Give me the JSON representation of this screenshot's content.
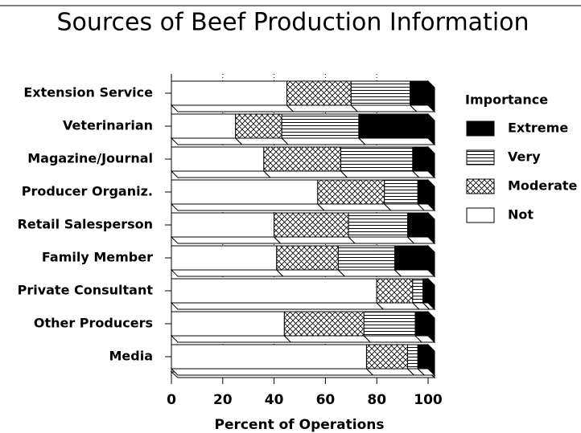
{
  "chart_data": {
    "type": "stacked_barh",
    "title": "Sources of Beef Production Information",
    "xlabel": "Percent of Operations",
    "legend_title": "Importance",
    "legend": "right",
    "categories": [
      "Extension Service",
      "Veterinarian",
      "Magazine/Journal",
      "Producer Organiz.",
      "Retail Salesperson",
      "Family Member",
      "Private Consultant",
      "Other Producers",
      "Media"
    ],
    "series": [
      {
        "name": "Extreme",
        "color": "#000000",
        "pattern": "solid",
        "values": [
          7,
          27,
          6,
          4,
          8,
          13,
          2,
          5,
          4
        ]
      },
      {
        "name": "Very",
        "color": "#000000",
        "pattern": "hlines",
        "values": [
          23,
          30,
          28,
          13,
          23,
          22,
          4,
          20,
          4
        ]
      },
      {
        "name": "Moderate",
        "color": "#000000",
        "pattern": "crosshatch",
        "values": [
          25,
          18,
          30,
          26,
          29,
          24,
          14,
          31,
          16
        ]
      },
      {
        "name": "Not",
        "color": "#ffffff",
        "pattern": "none",
        "values": [
          45,
          25,
          36,
          57,
          40,
          41,
          80,
          44,
          76
        ]
      }
    ],
    "xlim": [
      0,
      100
    ],
    "xticks": [
      0,
      20,
      40,
      60,
      80,
      100
    ],
    "grid": true
  }
}
